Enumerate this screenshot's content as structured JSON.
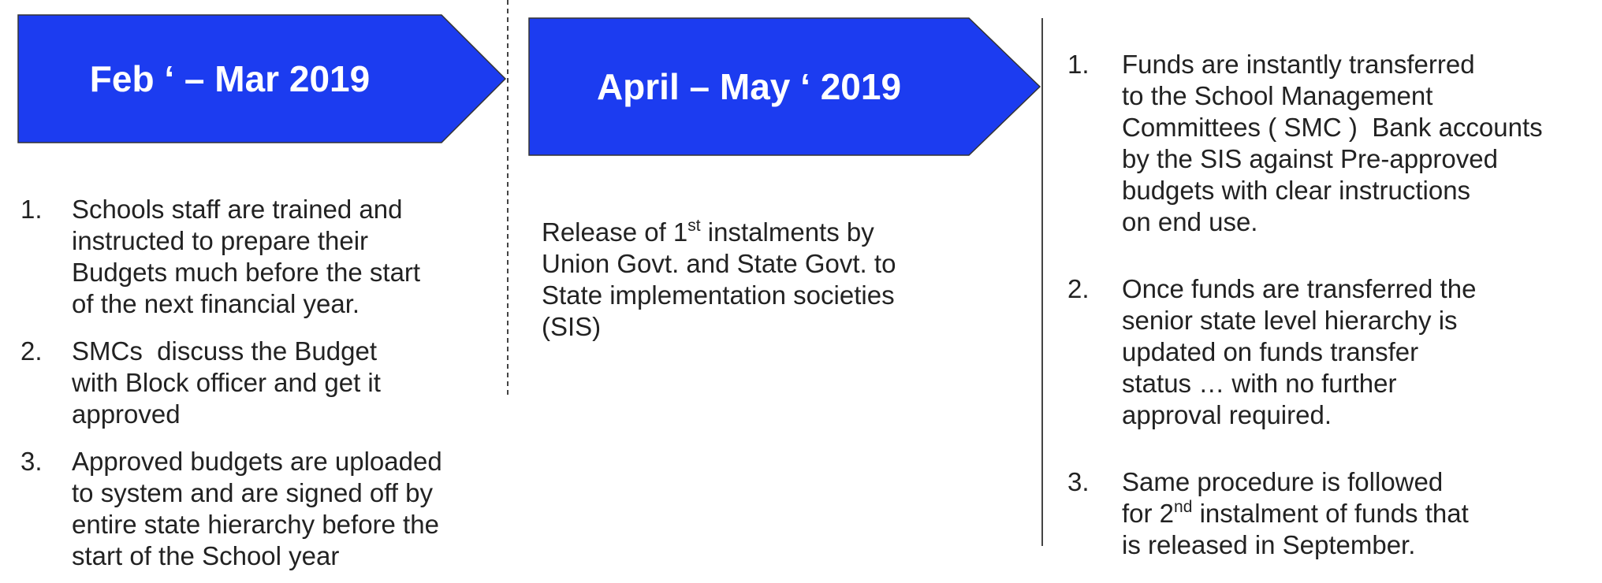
{
  "columns": [
    {
      "title": "Feb ‘ – Mar 2019",
      "items": [
        {
          "number": "1.",
          "parts": [
            "Schools staff are trained and\ninstructed to prepare their\nBudgets much before the start\nof the next financial year."
          ]
        },
        {
          "number": "2.",
          "parts": [
            "SMCs  discuss the Budget\nwith Block officer and get it\napproved"
          ]
        },
        {
          "number": "3.",
          "parts": [
            "Approved budgets are uploaded\nto system and are signed off by\nentire state hierarchy before the\nstart of the School year"
          ]
        }
      ]
    },
    {
      "title": "April – May ‘ 2019",
      "text": {
        "before": "Release of 1",
        "sup": "st",
        "after": " instalments by\nUnion Govt. and State Govt. to\nState implementation societies\n(SIS)"
      }
    },
    {
      "items": [
        {
          "number": "1.",
          "parts": [
            "Funds are instantly transferred\nto the School Management\nCommittees ( SMC )  Bank accounts\nby the SIS against Pre-approved\nbudgets with clear instructions\non end use."
          ]
        },
        {
          "number": "2.",
          "parts": [
            "Once funds are transferred the\nsenior state level hierarchy is\nupdated on funds transfer\nstatus … with no further\napproval required."
          ]
        },
        {
          "number": "3.",
          "parts": [
            "Same procedure is followed\nfor 2",
            "nd",
            " instalment of funds that\nis released in September."
          ]
        }
      ]
    }
  ]
}
